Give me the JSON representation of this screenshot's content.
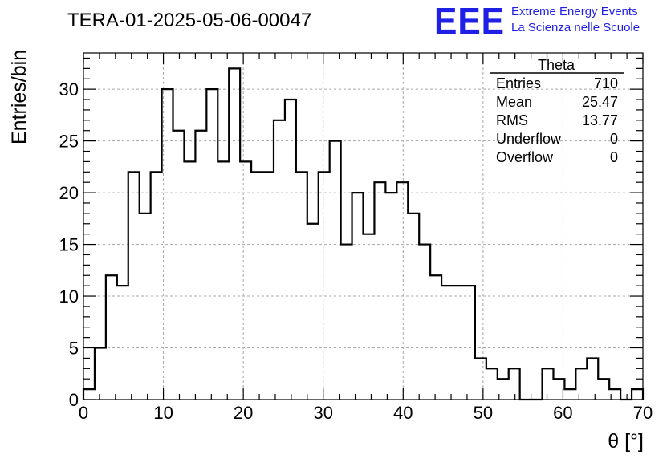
{
  "header": {
    "run_title": "TERA-01-2025-05-06-00047",
    "logo_text": "EEE",
    "logo_line1": "Extreme Energy Events",
    "logo_line2": "La Scienza nelle Scuole"
  },
  "stats_box": {
    "name": "Theta",
    "rows": [
      {
        "label": "Entries",
        "value": "710"
      },
      {
        "label": "Mean",
        "value": "25.47"
      },
      {
        "label": "RMS",
        "value": "13.77"
      },
      {
        "label": "Underflow",
        "value": "0"
      },
      {
        "label": "Overflow",
        "value": "0"
      }
    ]
  },
  "chart_data": {
    "type": "bar",
    "histogram": true,
    "xlabel": "θ [°]",
    "ylabel": "Entries/bin",
    "xlim": [
      0,
      70
    ],
    "ylim": [
      0,
      33.5
    ],
    "bin_width": 1.4,
    "xticks": [
      0,
      10,
      20,
      30,
      40,
      50,
      60,
      70
    ],
    "yticks": [
      0,
      5,
      10,
      15,
      20,
      25,
      30
    ],
    "grid": true,
    "legend": "top-right",
    "values": [
      1,
      5,
      12,
      11,
      22,
      18,
      22,
      30,
      26,
      23,
      26,
      30,
      23,
      32,
      23,
      22,
      22,
      27,
      29,
      22,
      17,
      22,
      25,
      15,
      20,
      16,
      21,
      20,
      21,
      18,
      15,
      12,
      11,
      11,
      11,
      4,
      3,
      2,
      3,
      0,
      0,
      3,
      2,
      1,
      3,
      4,
      2,
      1,
      0,
      1
    ]
  }
}
